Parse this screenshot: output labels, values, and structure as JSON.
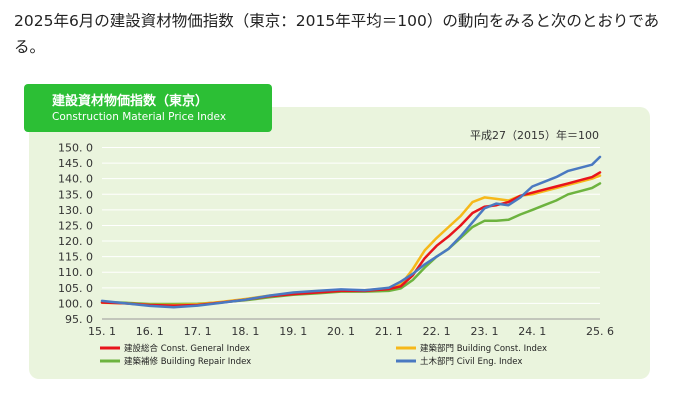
{
  "intro": {
    "text": "2025年6月の建設資材物価指数（東京：2015年平均＝100）の動向をみると次のとおりである。"
  },
  "chart_data": {
    "type": "line",
    "title": "建設資材物価指数（東京）",
    "subtitle": "Construction Material Price Index",
    "base_note": "平成27（2015）年＝100",
    "ylim": [
      95,
      150
    ],
    "y_ticks": [
      "150. 0",
      "145. 0",
      "140. 0",
      "135. 0",
      "130. 0",
      "125. 0",
      "120. 0",
      "115. 0",
      "110. 0",
      "105. 0",
      "100. 0",
      "95. 0"
    ],
    "x_ticks": [
      {
        "label": "15. 1",
        "t": 2015.0
      },
      {
        "label": "16. 1",
        "t": 2016.0
      },
      {
        "label": "17. 1",
        "t": 2017.0
      },
      {
        "label": "18. 1",
        "t": 2018.0
      },
      {
        "label": "19. 1",
        "t": 2019.0
      },
      {
        "label": "20. 1",
        "t": 2020.0
      },
      {
        "label": "21. 1",
        "t": 2021.0
      },
      {
        "label": "22. 1",
        "t": 2022.0
      },
      {
        "label": "23. 1",
        "t": 2023.0
      },
      {
        "label": "24. 1",
        "t": 2024.0
      },
      {
        "label": "25. 6",
        "t": 2025.4167
      }
    ],
    "grid": true,
    "legend_position": "bottom",
    "series": [
      {
        "name": "建設総合 Const. General Index",
        "color": "#e8141c",
        "points": [
          [
            2015.0,
            100.3
          ],
          [
            2015.5,
            100.0
          ],
          [
            2016.0,
            99.5
          ],
          [
            2016.5,
            99.3
          ],
          [
            2017.0,
            99.5
          ],
          [
            2017.5,
            100.3
          ],
          [
            2018.0,
            101.2
          ],
          [
            2018.5,
            102.3
          ],
          [
            2019.0,
            103.0
          ],
          [
            2019.5,
            103.5
          ],
          [
            2020.0,
            104.0
          ],
          [
            2020.5,
            104.0
          ],
          [
            2021.0,
            104.6
          ],
          [
            2021.25,
            105.5
          ],
          [
            2021.5,
            109.0
          ],
          [
            2021.75,
            114.5
          ],
          [
            2022.0,
            118.5
          ],
          [
            2022.25,
            121.5
          ],
          [
            2022.5,
            125.0
          ],
          [
            2022.75,
            129.0
          ],
          [
            2023.0,
            131.0
          ],
          [
            2023.25,
            131.5
          ],
          [
            2023.5,
            132.5
          ],
          [
            2023.75,
            134.5
          ],
          [
            2024.0,
            135.5
          ],
          [
            2024.25,
            136.5
          ],
          [
            2024.5,
            137.5
          ],
          [
            2024.75,
            138.5
          ],
          [
            2025.0,
            139.5
          ],
          [
            2025.25,
            140.5
          ],
          [
            2025.4167,
            142.0
          ]
        ]
      },
      {
        "name": "建築部門 Building Const. Index",
        "color": "#f6b81a",
        "points": [
          [
            2015.0,
            100.2
          ],
          [
            2015.5,
            100.0
          ],
          [
            2016.0,
            99.6
          ],
          [
            2016.5,
            99.5
          ],
          [
            2017.0,
            99.7
          ],
          [
            2017.5,
            100.5
          ],
          [
            2018.0,
            101.4
          ],
          [
            2018.5,
            102.5
          ],
          [
            2019.0,
            103.2
          ],
          [
            2019.5,
            103.7
          ],
          [
            2020.0,
            104.2
          ],
          [
            2020.5,
            104.2
          ],
          [
            2021.0,
            104.8
          ],
          [
            2021.25,
            106.0
          ],
          [
            2021.5,
            111.0
          ],
          [
            2021.75,
            117.0
          ],
          [
            2022.0,
            121.0
          ],
          [
            2022.25,
            124.5
          ],
          [
            2022.5,
            128.0
          ],
          [
            2022.75,
            132.5
          ],
          [
            2023.0,
            134.0
          ],
          [
            2023.25,
            133.5
          ],
          [
            2023.5,
            133.0
          ],
          [
            2023.75,
            134.5
          ],
          [
            2024.0,
            135.0
          ],
          [
            2024.25,
            136.0
          ],
          [
            2024.5,
            137.0
          ],
          [
            2024.75,
            138.0
          ],
          [
            2025.0,
            139.0
          ],
          [
            2025.25,
            140.0
          ],
          [
            2025.4167,
            141.0
          ]
        ]
      },
      {
        "name": "建築補修 Building Repair Index",
        "color": "#6db33f",
        "points": [
          [
            2015.0,
            100.5
          ],
          [
            2015.5,
            100.2
          ],
          [
            2016.0,
            99.8
          ],
          [
            2016.5,
            99.8
          ],
          [
            2017.0,
            99.9
          ],
          [
            2017.5,
            100.4
          ],
          [
            2018.0,
            101.0
          ],
          [
            2018.5,
            102.0
          ],
          [
            2019.0,
            102.8
          ],
          [
            2019.5,
            103.2
          ],
          [
            2020.0,
            103.8
          ],
          [
            2020.5,
            103.8
          ],
          [
            2021.0,
            104.0
          ],
          [
            2021.25,
            104.8
          ],
          [
            2021.5,
            107.5
          ],
          [
            2021.75,
            111.5
          ],
          [
            2022.0,
            115.0
          ],
          [
            2022.25,
            117.5
          ],
          [
            2022.5,
            121.0
          ],
          [
            2022.75,
            124.5
          ],
          [
            2023.0,
            126.5
          ],
          [
            2023.25,
            126.5
          ],
          [
            2023.5,
            126.8
          ],
          [
            2023.75,
            128.5
          ],
          [
            2024.0,
            130.0
          ],
          [
            2024.25,
            131.5
          ],
          [
            2024.5,
            133.0
          ],
          [
            2024.75,
            135.0
          ],
          [
            2025.0,
            136.0
          ],
          [
            2025.25,
            137.0
          ],
          [
            2025.4167,
            138.5
          ]
        ]
      },
      {
        "name": "土木部門 Civil Eng. Index",
        "color": "#4a79c1",
        "points": [
          [
            2015.0,
            100.8
          ],
          [
            2015.5,
            100.0
          ],
          [
            2016.0,
            99.2
          ],
          [
            2016.5,
            98.8
          ],
          [
            2017.0,
            99.3
          ],
          [
            2017.5,
            100.2
          ],
          [
            2018.0,
            101.2
          ],
          [
            2018.5,
            102.5
          ],
          [
            2019.0,
            103.5
          ],
          [
            2019.5,
            104.0
          ],
          [
            2020.0,
            104.5
          ],
          [
            2020.5,
            104.2
          ],
          [
            2021.0,
            105.0
          ],
          [
            2021.25,
            107.0
          ],
          [
            2021.5,
            109.5
          ],
          [
            2021.75,
            112.5
          ],
          [
            2022.0,
            115.0
          ],
          [
            2022.25,
            117.5
          ],
          [
            2022.5,
            121.5
          ],
          [
            2022.75,
            126.0
          ],
          [
            2023.0,
            130.5
          ],
          [
            2023.25,
            132.0
          ],
          [
            2023.5,
            131.5
          ],
          [
            2023.75,
            134.0
          ],
          [
            2024.0,
            137.5
          ],
          [
            2024.25,
            139.0
          ],
          [
            2024.5,
            140.5
          ],
          [
            2024.75,
            142.5
          ],
          [
            2025.0,
            143.5
          ],
          [
            2025.25,
            144.5
          ],
          [
            2025.4167,
            147.0
          ]
        ]
      }
    ]
  }
}
